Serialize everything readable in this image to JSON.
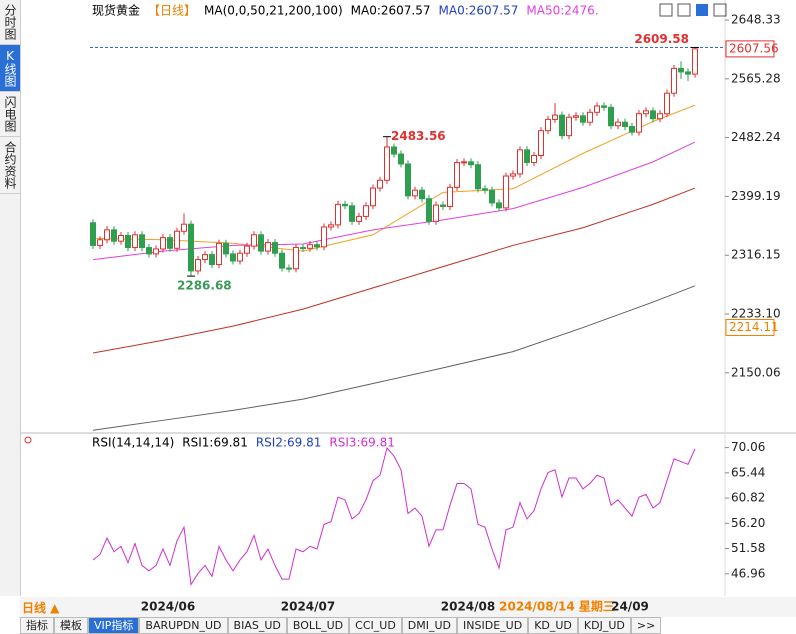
{
  "chart_data": {
    "type": "candlestick",
    "header": [
      {
        "text": "现货黄金",
        "color": "#000000"
      },
      {
        "text": "【日线】",
        "color": "#f08000"
      },
      {
        "text": "MA(0,0,50,21,200,100)",
        "color": "#000000"
      },
      {
        "text": "MA0:2607.57",
        "color": "#000000"
      },
      {
        "text": "MA0:2607.57",
        "color": "#2040c0"
      },
      {
        "text": "MA50:2476.",
        "color": "#e040e0"
      }
    ],
    "up_color": "#e03030",
    "down_color": "#2e9e4f",
    "open": [
      2362,
      2330,
      2338,
      2352,
      2336,
      2344,
      2327,
      2345,
      2327,
      2318,
      2325,
      2341,
      2326,
      2350,
      2360,
      2294,
      2310,
      2317,
      2303,
      2333,
      2318,
      2308,
      2319,
      2329,
      2345,
      2322,
      2334,
      2319,
      2298,
      2297,
      2327,
      2326,
      2331,
      2328,
      2356,
      2359,
      2388,
      2386,
      2364,
      2371,
      2386,
      2411,
      2422,
      2469,
      2459,
      2445,
      2400,
      2408,
      2396,
      2364,
      2387,
      2385,
      2412,
      2447,
      2448,
      2444,
      2410,
      2408,
      2390,
      2383,
      2428,
      2431,
      2465,
      2447,
      2457,
      2492,
      2508,
      2514,
      2485,
      2511,
      2513,
      2504,
      2518,
      2527,
      2525,
      2499,
      2504,
      2498,
      2490,
      2516,
      2520,
      2509,
      2516,
      2545,
      2580,
      2575,
      2572
    ],
    "high": [
      2367,
      2343,
      2357,
      2357,
      2349,
      2349,
      2350,
      2350,
      2332,
      2330,
      2346,
      2346,
      2355,
      2375,
      2365,
      2315,
      2322,
      2322,
      2338,
      2338,
      2323,
      2324,
      2334,
      2350,
      2350,
      2339,
      2339,
      2324,
      2303,
      2332,
      2332,
      2336,
      2336,
      2361,
      2364,
      2393,
      2393,
      2391,
      2376,
      2391,
      2416,
      2427,
      2483.56,
      2474,
      2464,
      2450,
      2413,
      2413,
      2401,
      2392,
      2392,
      2417,
      2452,
      2453,
      2453,
      2449,
      2415,
      2413,
      2395,
      2433,
      2436,
      2470,
      2470,
      2462,
      2497,
      2513,
      2531,
      2519,
      2516,
      2518,
      2518,
      2523,
      2532,
      2532,
      2530,
      2509,
      2509,
      2503,
      2521,
      2525,
      2525,
      2521,
      2550,
      2585,
      2590,
      2580,
      2609.58
    ],
    "low": [
      2325,
      2325,
      2333,
      2331,
      2331,
      2322,
      2322,
      2322,
      2313,
      2313,
      2320,
      2321,
      2321,
      2345,
      2286.68,
      2289,
      2305,
      2298,
      2298,
      2313,
      2303,
      2303,
      2314,
      2324,
      2317,
      2317,
      2314,
      2293,
      2292,
      2292,
      2321,
      2321,
      2323,
      2323,
      2351,
      2354,
      2381,
      2359,
      2359,
      2366,
      2381,
      2406,
      2417,
      2454,
      2440,
      2395,
      2395,
      2391,
      2359,
      2359,
      2380,
      2380,
      2407,
      2442,
      2439,
      2405,
      2403,
      2385,
      2378,
      2378,
      2423,
      2426,
      2442,
      2442,
      2452,
      2487,
      2503,
      2480,
      2480,
      2506,
      2499,
      2499,
      2513,
      2520,
      2494,
      2494,
      2493,
      2485,
      2485,
      2511,
      2504,
      2504,
      2511,
      2540,
      2565,
      2562,
      2567
    ],
    "close": [
      2330,
      2338,
      2352,
      2336,
      2344,
      2327,
      2345,
      2327,
      2318,
      2325,
      2341,
      2326,
      2350,
      2360,
      2294,
      2310,
      2317,
      2303,
      2333,
      2318,
      2308,
      2319,
      2329,
      2345,
      2322,
      2334,
      2319,
      2298,
      2297,
      2327,
      2326,
      2331,
      2328,
      2356,
      2359,
      2388,
      2386,
      2364,
      2371,
      2386,
      2411,
      2422,
      2469,
      2459,
      2445,
      2400,
      2408,
      2396,
      2364,
      2387,
      2385,
      2412,
      2447,
      2448,
      2444,
      2410,
      2408,
      2390,
      2383,
      2428,
      2431,
      2465,
      2447,
      2457,
      2492,
      2508,
      2514,
      2485,
      2511,
      2513,
      2504,
      2518,
      2527,
      2525,
      2499,
      2504,
      2498,
      2490,
      2516,
      2520,
      2509,
      2516,
      2545,
      2580,
      2575,
      2572,
      2607.57
    ],
    "series": [
      {
        "color": "#f0a020",
        "x": [
          0,
          10,
          20,
          30,
          40,
          50,
          60,
          70,
          80,
          86
        ],
        "values": [
          2340,
          2338,
          2333,
          2322,
          2345,
          2405,
          2410,
          2460,
          2505,
          2528
        ]
      },
      {
        "color": "#e040e0",
        "x": [
          0,
          10,
          20,
          30,
          40,
          50,
          60,
          70,
          80,
          86
        ],
        "values": [
          2310,
          2322,
          2330,
          2332,
          2352,
          2366,
          2382,
          2412,
          2448,
          2476
        ]
      },
      {
        "color": "#c03020",
        "x": [
          0,
          10,
          20,
          30,
          40,
          50,
          60,
          70,
          80,
          86
        ],
        "values": [
          2178,
          2196,
          2216,
          2240,
          2270,
          2300,
          2330,
          2355,
          2388,
          2411
        ]
      },
      {
        "color": "#606060",
        "x": [
          0,
          10,
          20,
          30,
          40,
          50,
          60,
          70,
          80,
          86
        ],
        "values": [
          2069,
          2083,
          2097,
          2113,
          2135,
          2157,
          2180,
          2214,
          2250,
          2273
        ]
      }
    ],
    "ylim": [
      2066.5,
      2665.3
    ],
    "yticks": [
      2648.33,
      2565.28,
      2482.24,
      2399.19,
      2316.15,
      {
        "value": 2233.1,
        "label": "2233.10"
      },
      2150.06
    ],
    "markers": [
      {
        "value": 2607.56,
        "color": "#e03030"
      },
      {
        "value": 2214.11,
        "color": "#f08000"
      }
    ],
    "x_labels": [
      "2024/06",
      "2024/07",
      "2024/08",
      "2024/08/14 星期三",
      "24/09"
    ]
  },
  "rsi": {
    "type": "line",
    "header": [
      {
        "text": "RSI(14,14,14)",
        "color": "#000000"
      },
      {
        "text": "RSI1:69.81",
        "color": "#000000"
      },
      {
        "text": "RSI2:69.81",
        "color": "#2040c0"
      },
      {
        "text": "RSI3:69.81",
        "color": "#d030d0"
      }
    ],
    "color": "#d030d0",
    "values": [
      49.5,
      50.5,
      53.5,
      51,
      52,
      49,
      52.5,
      48.5,
      47.5,
      48.5,
      51.5,
      48.5,
      53,
      55.5,
      45,
      47,
      48.5,
      46.5,
      52,
      49.5,
      47.5,
      49.5,
      51,
      54,
      49.5,
      51.5,
      48.5,
      46,
      46,
      51.5,
      51,
      52,
      51.5,
      56,
      56.5,
      61,
      60.5,
      57,
      58,
      60.5,
      64,
      65,
      70,
      68.5,
      66,
      58,
      59,
      57.5,
      52,
      55,
      55,
      59.5,
      63.5,
      63.5,
      62.5,
      56,
      55.5,
      51.5,
      48,
      55,
      55.5,
      60,
      57,
      58.5,
      62.5,
      65.5,
      66,
      61,
      64.5,
      64.5,
      62.5,
      63.5,
      65,
      64.5,
      59.5,
      60.5,
      59,
      57.5,
      61,
      61.5,
      59,
      60,
      64,
      68,
      67.5,
      67,
      69.81
    ],
    "ylim": [
      44,
      72
    ],
    "yticks": [
      70.06,
      65.44,
      60.82,
      {
        "value": 56.2,
        "label": "56.20"
      },
      51.58,
      46.96
    ]
  },
  "ui": {
    "side_tabs": [
      "分时图",
      "K线图",
      "闪电图",
      "合约资料"
    ],
    "period_button": "日线 ▲",
    "bottom_tabs": [
      "指标",
      "模板",
      "VIP指标",
      "BARUPDN_UD",
      "BIAS_UD",
      "BOLL_UD",
      "CCI_UD",
      "DMI_UD",
      "INSIDE_UD",
      "KD_UD",
      "KDJ_UD",
      ">>"
    ]
  }
}
